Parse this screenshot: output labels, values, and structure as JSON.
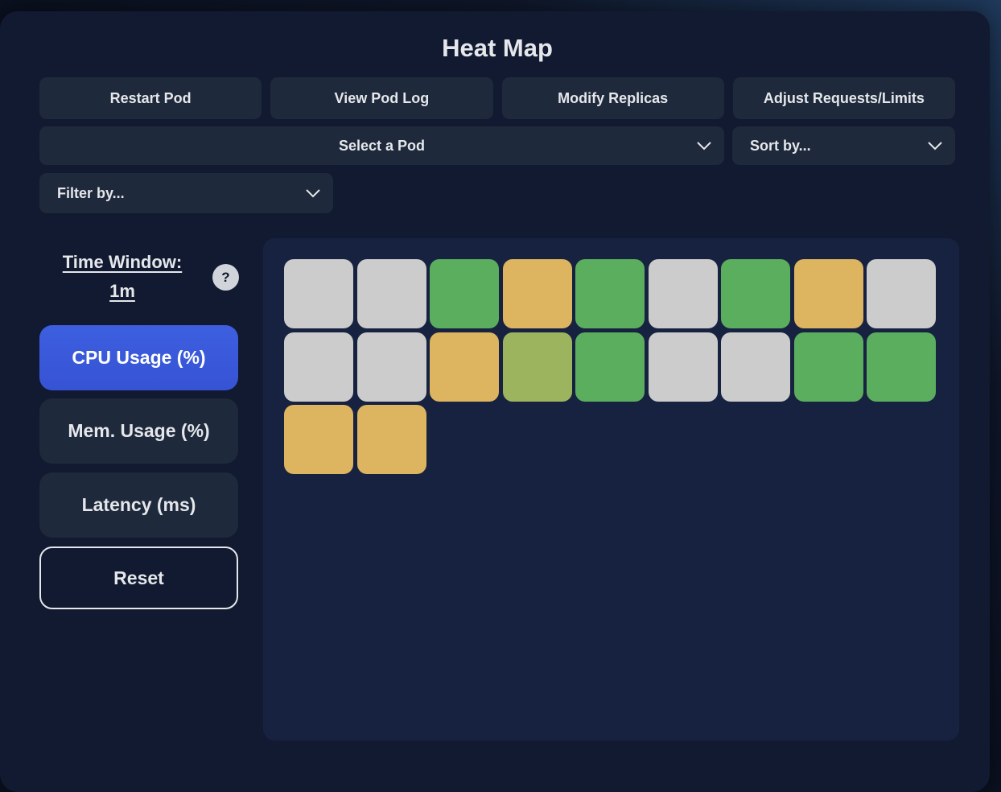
{
  "title": "Heat Map",
  "actions": {
    "restart": "Restart Pod",
    "view_log": "View Pod Log",
    "modify_replicas": "Modify Replicas",
    "adjust_limits": "Adjust Requests/Limits"
  },
  "selects": {
    "pod": "Select a Pod",
    "sort": "Sort by...",
    "filter": "Filter by..."
  },
  "time_window": {
    "label": "Time Window:",
    "value": "1m",
    "help": "?"
  },
  "metrics": {
    "cpu": "CPU Usage (%)",
    "mem": "Mem. Usage (%)",
    "latency": "Latency (ms)",
    "active": "cpu"
  },
  "reset_label": "Reset",
  "colors": {
    "gray": "#cccccc",
    "green": "#5cae5f",
    "amber": "#ddb45f",
    "olive": "#9db45f"
  },
  "heatmap_cells": [
    "gray",
    "gray",
    "green",
    "amber",
    "green",
    "gray",
    "green",
    "amber",
    "gray",
    "gray",
    "gray",
    "amber",
    "olive",
    "green",
    "gray",
    "gray",
    "green",
    "green",
    "amber",
    "amber"
  ]
}
